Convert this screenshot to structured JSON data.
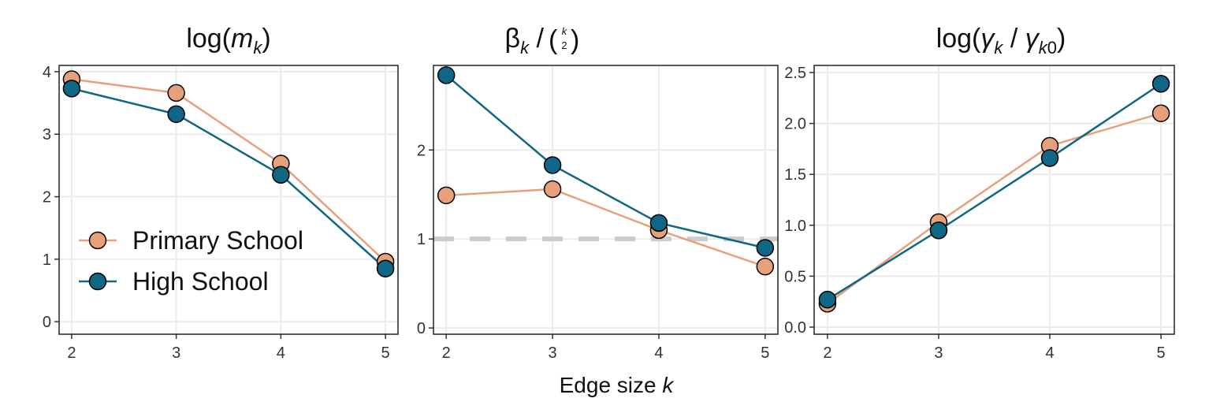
{
  "colors": {
    "primary_school": "#E8A07A",
    "high_school": "#0F6785",
    "reference_line": "#CCCCCC"
  },
  "xaxis_title": {
    "prefix": "Edge size ",
    "var": "k"
  },
  "legend": {
    "placement": "bottom-left of first panel",
    "items": [
      "Primary School",
      "High School"
    ]
  },
  "chart_data": [
    {
      "type": "line",
      "title": "log(m_k)",
      "x": [
        2,
        3,
        4,
        5
      ],
      "xticks": [
        "2",
        "3",
        "4",
        "5"
      ],
      "ylim": [
        -0.2,
        4.1
      ],
      "yticks": [
        0,
        1,
        2,
        3,
        4
      ],
      "ytick_labels": [
        "0",
        "1",
        "2",
        "3",
        "4"
      ],
      "grid": true,
      "series": [
        {
          "name": "Primary School",
          "values": [
            3.88,
            3.66,
            2.53,
            0.96
          ]
        },
        {
          "name": "High School",
          "values": [
            3.73,
            3.32,
            2.35,
            0.85
          ]
        }
      ]
    },
    {
      "type": "line",
      "title": "βk / (k choose 2)",
      "x": [
        2,
        3,
        4,
        5
      ],
      "xticks": [
        "2",
        "3",
        "4",
        "5"
      ],
      "ylim": [
        -0.07,
        2.95
      ],
      "yticks": [
        0,
        1,
        2
      ],
      "ytick_labels": [
        "0",
        "1",
        "2"
      ],
      "grid": true,
      "reference_line": {
        "y": 1,
        "style": "dashed"
      },
      "series": [
        {
          "name": "Primary School",
          "values": [
            1.49,
            1.56,
            1.1,
            0.69
          ]
        },
        {
          "name": "High School",
          "values": [
            2.84,
            1.83,
            1.18,
            0.9
          ]
        }
      ]
    },
    {
      "type": "line",
      "title": "log(γk / γk0)",
      "x": [
        2,
        3,
        4,
        5
      ],
      "xticks": [
        "2",
        "3",
        "4",
        "5"
      ],
      "ylim": [
        -0.07,
        2.57
      ],
      "yticks": [
        0,
        0.5,
        1.0,
        1.5,
        2.0,
        2.5
      ],
      "ytick_labels": [
        "0.0",
        "0.5",
        "1.0",
        "1.5",
        "2.0",
        "2.5"
      ],
      "grid": true,
      "series": [
        {
          "name": "Primary School",
          "values": [
            0.23,
            1.03,
            1.78,
            2.1
          ]
        },
        {
          "name": "High School",
          "values": [
            0.27,
            0.95,
            1.66,
            2.39
          ]
        }
      ]
    }
  ]
}
